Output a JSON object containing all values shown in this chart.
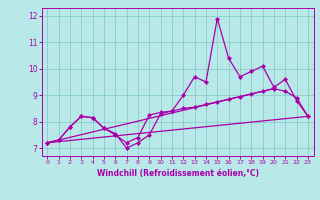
{
  "bg_color": "#b8e8e8",
  "grid_color": "#88cccc",
  "line_color": "#aa00aa",
  "marker_color": "#aa00aa",
  "xlabel": "Windchill (Refroidissement éolien,°C)",
  "xlabel_color": "#aa00aa",
  "tick_color": "#aa00aa",
  "ylim": [
    6.7,
    12.3
  ],
  "xlim": [
    -0.5,
    23.5
  ],
  "yticks": [
    7,
    8,
    9,
    10,
    11,
    12
  ],
  "xticks": [
    0,
    1,
    2,
    3,
    4,
    5,
    6,
    7,
    8,
    9,
    10,
    11,
    12,
    13,
    14,
    15,
    16,
    17,
    18,
    19,
    20,
    21,
    22,
    23
  ],
  "line1_x": [
    0,
    1,
    2,
    3,
    4,
    5,
    6,
    7,
    8,
    9,
    10,
    11,
    12,
    13,
    14,
    15,
    16,
    17,
    18,
    19,
    20,
    21,
    22,
    23
  ],
  "line1_y": [
    7.2,
    7.3,
    7.8,
    8.2,
    8.15,
    7.75,
    7.55,
    7.0,
    7.2,
    7.5,
    8.3,
    8.4,
    9.0,
    9.7,
    9.5,
    11.9,
    10.4,
    9.7,
    9.9,
    10.1,
    9.3,
    9.6,
    8.8,
    8.2
  ],
  "line2_x": [
    0,
    1,
    2,
    3,
    4,
    5,
    6,
    7,
    8,
    9,
    10,
    11,
    12,
    13,
    14,
    15,
    16,
    17,
    18,
    19,
    20,
    21,
    22,
    23
  ],
  "line2_y": [
    7.2,
    7.3,
    7.8,
    8.2,
    8.15,
    7.75,
    7.5,
    7.2,
    7.4,
    8.25,
    8.35,
    8.4,
    8.5,
    8.55,
    8.65,
    8.75,
    8.85,
    8.95,
    9.05,
    9.15,
    9.25,
    9.15,
    8.9,
    8.2
  ],
  "line3_x": [
    0,
    23
  ],
  "line3_y": [
    7.2,
    8.2
  ],
  "line4_x": [
    0,
    20
  ],
  "line4_y": [
    7.2,
    9.25
  ]
}
